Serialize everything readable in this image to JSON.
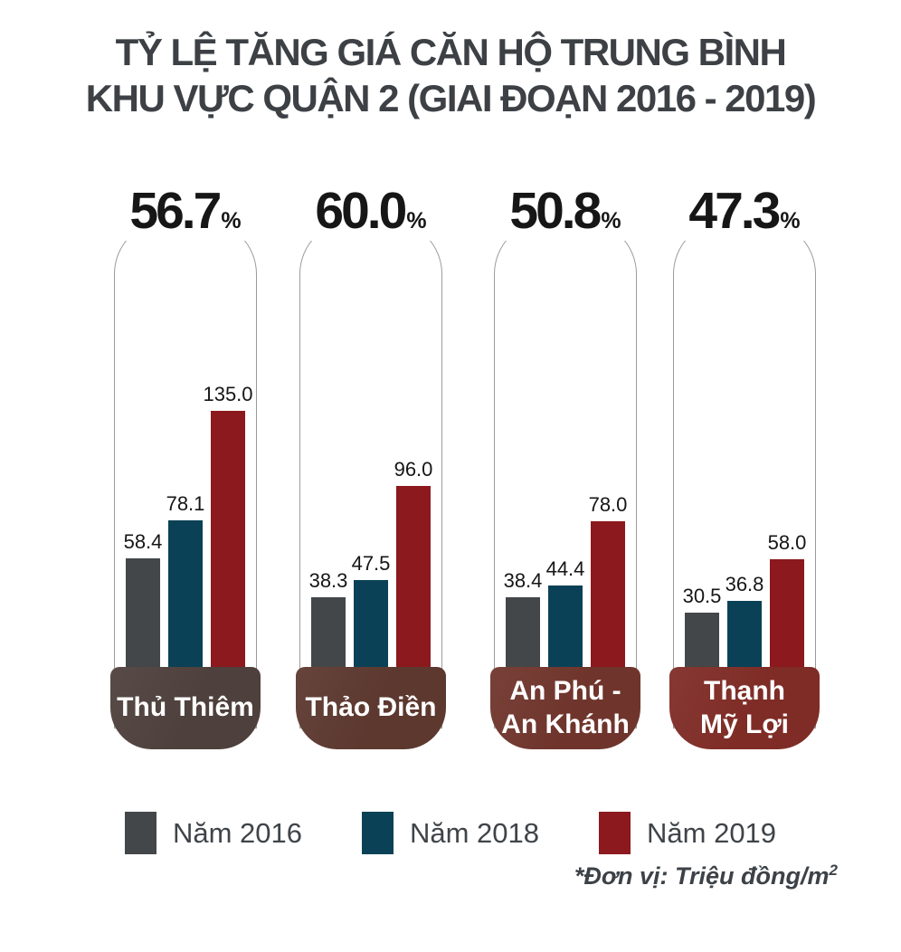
{
  "title": {
    "line1": "TỶ LỆ TĂNG GIÁ CĂN HỘ TRUNG BÌNH",
    "line2": "KHU VỰC QUẬN 2 (GIAI ĐOẠN 2016 - 2019)"
  },
  "chart_data": {
    "type": "bar",
    "title": "TỶ LỆ TĂNG GIÁ CĂN HỘ TRUNG BÌNH KHU VỰC QUẬN 2 (GIAI ĐOẠN 2016 - 2019)",
    "categories": [
      "Thủ Thiêm",
      "Thảo Điền",
      "An Phú - An Khánh",
      "Thạnh Mỹ Lợi"
    ],
    "category_lines": [
      [
        "Thủ Thiêm",
        ""
      ],
      [
        "Thảo Điền",
        ""
      ],
      [
        "An Phú -",
        "An Khánh"
      ],
      [
        "Thạnh",
        "Mỹ Lợi"
      ]
    ],
    "growth_labels": [
      "56.7",
      "60.0",
      "50.8",
      "47.3"
    ],
    "percent_sign": "%",
    "series": [
      {
        "name": "Năm 2016",
        "color": "#43474a",
        "values": [
          58.4,
          38.3,
          38.4,
          30.5
        ]
      },
      {
        "name": "Năm 2018",
        "color": "#0b4156",
        "values": [
          78.1,
          47.5,
          44.4,
          36.8
        ]
      },
      {
        "name": "Năm 2019",
        "color": "#8c191d",
        "values": [
          135.0,
          96.0,
          78.0,
          58.0
        ]
      }
    ],
    "value_labels": [
      [
        "58.4",
        "78.1",
        "135.0"
      ],
      [
        "38.3",
        "47.5",
        "96.0"
      ],
      [
        "38.4",
        "44.4",
        "78.0"
      ],
      [
        "30.5",
        "36.8",
        "58.0"
      ]
    ],
    "box_colors": [
      "#4e403c",
      "#5c382f",
      "#6f352c",
      "#7f2c26"
    ],
    "outline_color": "#9b9b9b",
    "ylim": [
      0,
      135
    ],
    "grid": false,
    "legend_position": "bottom",
    "unit_note": "*Đơn vị: Triệu đồng/m²"
  },
  "legend": {
    "items": [
      {
        "label": "Năm 2016"
      },
      {
        "label": "Năm 2018"
      },
      {
        "label": "Năm 2019"
      }
    ]
  },
  "footnote": {
    "text": "*Đơn vị: Triệu đồng/m",
    "sup": "2"
  }
}
